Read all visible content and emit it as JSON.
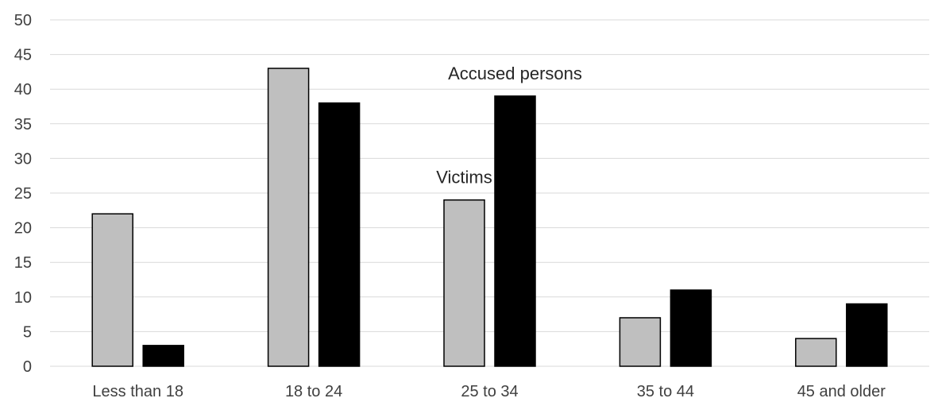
{
  "chart_data": {
    "type": "bar",
    "categories": [
      "Less than 18",
      "18 to 24",
      "25 to 34",
      "35 to 44",
      "45 and older"
    ],
    "series": [
      {
        "values": [
          22,
          43,
          24,
          7,
          4
        ],
        "color": "#bfbfbf"
      },
      {
        "values": [
          3,
          38,
          39,
          11,
          9
        ],
        "color": "#000000"
      }
    ],
    "ylim": [
      0,
      50
    ],
    "yticks": [
      0,
      5,
      10,
      15,
      20,
      25,
      30,
      35,
      40,
      45,
      50
    ],
    "grid": true,
    "annotations": [
      {
        "text": "Accused persons",
        "series_index": 1,
        "category_index": 2
      },
      {
        "text": "Victims",
        "series_index": 0,
        "category_index": 2
      }
    ],
    "gridline_color": "#d9d9d9",
    "text_color": "#404040"
  }
}
